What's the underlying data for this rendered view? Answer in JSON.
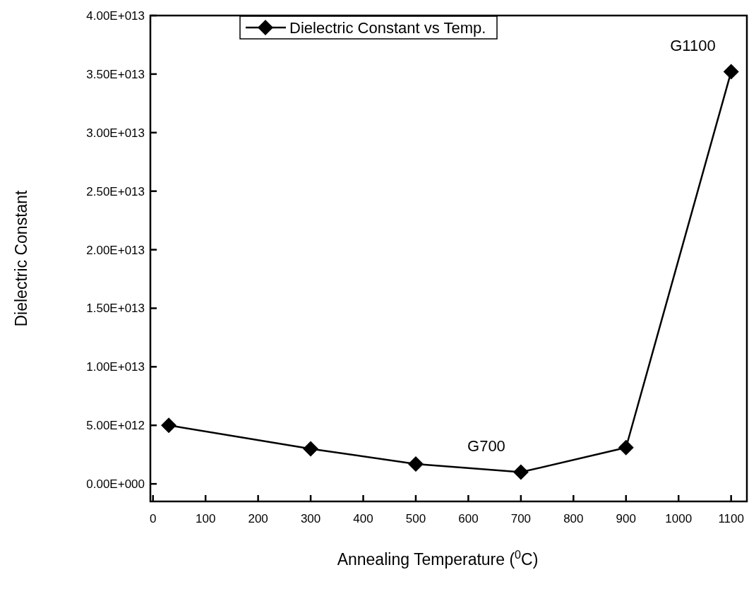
{
  "chart_data": {
    "type": "line",
    "xlabel": "Annealing Temperature ($^{0}$C)",
    "ylabel": "Dielectric Constant",
    "x": [
      30,
      300,
      500,
      700,
      900,
      1100
    ],
    "series": [
      {
        "name": "Dielectric Constant vs Temp.",
        "color": "#000000",
        "values": [
          5000000000000.0,
          3000000000000.0,
          1700000000000.0,
          1000000000000.0,
          3100000000000.0,
          35200000000000.0
        ]
      }
    ],
    "xlim": [
      -5,
      1130
    ],
    "xticks": [
      0,
      100,
      200,
      300,
      400,
      500,
      600,
      700,
      800,
      900,
      1000,
      1100
    ],
    "ylim": [
      -1500000000000.0,
      40000000000000.0
    ],
    "yticks": [
      {
        "value": 0,
        "label": "0.00E+000"
      },
      {
        "value": 5000000000000.0,
        "label": "5.00E+012"
      },
      {
        "value": 10000000000000.0,
        "label": "1.00E+013"
      },
      {
        "value": 15000000000000.0,
        "label": "1.50E+013"
      },
      {
        "value": 20000000000000.0,
        "label": "2.00E+013"
      },
      {
        "value": 25000000000000.0,
        "label": "2.50E+013"
      },
      {
        "value": 30000000000000.0,
        "label": "3.00E+013"
      },
      {
        "value": 35000000000000.0,
        "label": "3.50E+013"
      },
      {
        "value": 40000000000000.0,
        "label": "4.00E+013"
      }
    ],
    "annotations": [
      {
        "text": "G1100",
        "x": 1100,
        "y": 35200000000000.0
      },
      {
        "text": "G700",
        "x": 700,
        "y": 1000000000000.0
      }
    ],
    "marker": "diamond",
    "line_style": "solid",
    "legend": "top",
    "grid": false
  }
}
